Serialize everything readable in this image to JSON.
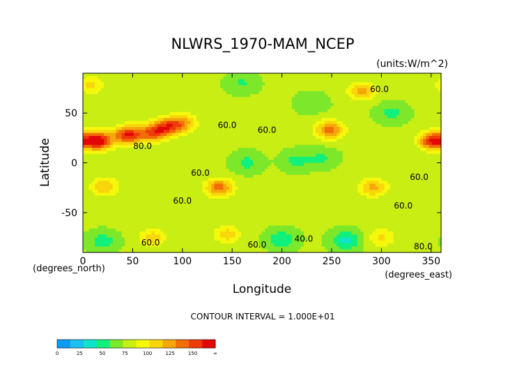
{
  "chart_data": {
    "type": "heatmap",
    "title": "NLWRS_1970-MAM_NCEP",
    "units_note": "(units:W/m^2)",
    "xlabel": "Longitude",
    "ylabel": "Latitude",
    "x_unit_note": "(degrees_east)",
    "y_unit_note": "(degrees_north)",
    "xlim": [
      0,
      360
    ],
    "ylim": [
      -90,
      90
    ],
    "x_ticks": [
      "0",
      "50",
      "100",
      "150",
      "200",
      "250",
      "300",
      "350"
    ],
    "x_tick_values": [
      0,
      50,
      100,
      150,
      200,
      250,
      300,
      350
    ],
    "y_ticks": [
      "50",
      "0",
      "-50"
    ],
    "y_tick_values": [
      50,
      0,
      -50
    ],
    "contour_interval_text": "CONTOUR INTERVAL = 1.000E+01",
    "contour_labels": [
      {
        "text": "60.0",
        "lon": 298,
        "lat": 71
      },
      {
        "text": "60.0",
        "lon": 145,
        "lat": 35
      },
      {
        "text": "60.0",
        "lon": 185,
        "lat": 30
      },
      {
        "text": "80.0",
        "lon": 60,
        "lat": 14
      },
      {
        "text": "60.0",
        "lon": 118,
        "lat": -13
      },
      {
        "text": "60.0",
        "lon": 100,
        "lat": -41
      },
      {
        "text": "60.0",
        "lon": 338,
        "lat": -17
      },
      {
        "text": "60.0",
        "lon": 322,
        "lat": -46
      },
      {
        "text": "60.0",
        "lon": 68,
        "lat": -83
      },
      {
        "text": "60.0",
        "lon": 175,
        "lat": -85
      },
      {
        "text": "40.0",
        "lon": 222,
        "lat": -79
      },
      {
        "text": "80.0",
        "lon": 342,
        "lat": -87
      }
    ],
    "colorbar": {
      "tick_labels": [
        "0",
        "25",
        "50",
        "75",
        "100",
        "125",
        "150",
        "∞"
      ],
      "colors": [
        "#0d9af5",
        "#1ac1f0",
        "#10e3c9",
        "#11f07a",
        "#7de82a",
        "#c8ee14",
        "#f6f80c",
        "#f8d60b",
        "#f4a709",
        "#f26d08",
        "#ee3a06",
        "#e20606"
      ]
    },
    "hotspots": [
      {
        "lon": 15,
        "lat": 22,
        "value": 150
      },
      {
        "lon": 45,
        "lat": 28,
        "value": 140
      },
      {
        "lon": 70,
        "lat": 30,
        "value": 120
      },
      {
        "lon": 85,
        "lat": 36,
        "value": 120
      },
      {
        "lon": 100,
        "lat": 40,
        "value": 105
      },
      {
        "lon": 248,
        "lat": 33,
        "value": 120
      },
      {
        "lon": 352,
        "lat": 22,
        "value": 140
      },
      {
        "lon": 280,
        "lat": 72,
        "value": 105
      },
      {
        "lon": 137,
        "lat": -25,
        "value": 120
      },
      {
        "lon": 22,
        "lat": -24,
        "value": 100
      },
      {
        "lon": 292,
        "lat": -25,
        "value": 105
      },
      {
        "lon": 70,
        "lat": -75,
        "value": 95
      },
      {
        "lon": 145,
        "lat": -72,
        "value": 95
      },
      {
        "lon": 300,
        "lat": -75,
        "value": 90
      },
      {
        "lon": 8,
        "lat": 78,
        "value": 90
      }
    ],
    "coldspots": [
      {
        "lon": 165,
        "lat": 0,
        "value": 45
      },
      {
        "lon": 215,
        "lat": 2,
        "value": 45
      },
      {
        "lon": 240,
        "lat": 5,
        "value": 48
      },
      {
        "lon": 265,
        "lat": -78,
        "value": 30
      },
      {
        "lon": 200,
        "lat": -77,
        "value": 38
      },
      {
        "lon": 20,
        "lat": -79,
        "value": 42
      },
      {
        "lon": 310,
        "lat": 50,
        "value": 45
      },
      {
        "lon": 160,
        "lat": 80,
        "value": 48
      },
      {
        "lon": 230,
        "lat": 60,
        "value": 50
      }
    ]
  }
}
